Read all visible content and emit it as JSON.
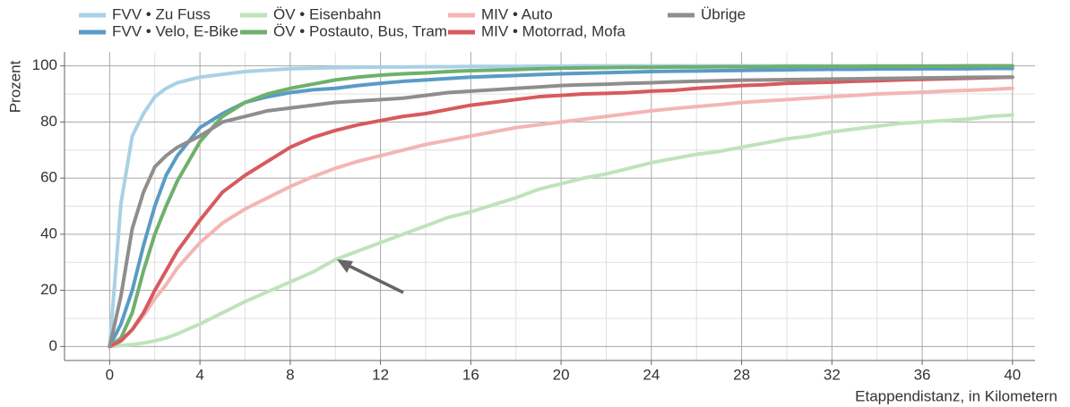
{
  "chart_data": {
    "type": "line",
    "x_label": "Etappendistanz, in Kilometern",
    "y_label": "Prozent",
    "x": [
      0,
      0.5,
      1,
      1.5,
      2,
      2.5,
      3,
      4,
      5,
      6,
      7,
      8,
      9,
      10,
      11,
      12,
      13,
      14,
      15,
      16,
      17,
      18,
      19,
      20,
      21,
      22,
      23,
      24,
      25,
      26,
      27,
      28,
      29,
      30,
      31,
      32,
      33,
      34,
      35,
      36,
      37,
      38,
      39,
      40
    ],
    "series": [
      {
        "name": "FVV • Zu Fuss",
        "color": "#a9d1e6",
        "values": [
          0,
          51,
          75,
          83,
          89,
          92,
          94,
          96,
          97,
          98,
          98.5,
          99,
          99.2,
          99.4,
          99.5,
          99.6,
          99.6,
          99.7,
          99.7,
          99.8,
          99.8,
          99.8,
          99.9,
          99.9,
          100,
          100,
          100,
          100,
          100,
          100,
          100,
          100,
          100,
          100,
          100,
          100,
          100,
          100,
          100,
          100,
          100,
          100,
          100,
          100
        ]
      },
      {
        "name": "FVV • Velo, E-Bike",
        "color": "#5a9bc6",
        "values": [
          0,
          8,
          20,
          36,
          50,
          61,
          68,
          78,
          83,
          87,
          89,
          90.5,
          91.5,
          92,
          93,
          93.8,
          94.5,
          95,
          95.5,
          96,
          96.3,
          96.6,
          96.9,
          97.2,
          97.4,
          97.6,
          97.8,
          98,
          98.1,
          98.2,
          98.3,
          98.4,
          98.5,
          98.6,
          98.7,
          98.8,
          98.8,
          98.9,
          98.9,
          99,
          99,
          99,
          99.1,
          99.1
        ]
      },
      {
        "name": "ÖV • Eisenbahn",
        "color": "#bfe3bb",
        "values": [
          0,
          0.3,
          0.7,
          1.2,
          2,
          3,
          4.5,
          8,
          12,
          16,
          19.5,
          23,
          26.5,
          31,
          34,
          37,
          40,
          43,
          46,
          48,
          50.5,
          53,
          56,
          58,
          60,
          61.5,
          63.5,
          65.5,
          67,
          68.5,
          69.5,
          71,
          72.5,
          74,
          75,
          76.5,
          77.5,
          78.5,
          79.5,
          80,
          80.5,
          81,
          82,
          82.5
        ]
      },
      {
        "name": "ÖV • Postauto, Bus, Tram",
        "color": "#6fb06c",
        "values": [
          0,
          3,
          12,
          27,
          40,
          50,
          59,
          73,
          82,
          87,
          90,
          92,
          93.5,
          95,
          96,
          96.7,
          97.2,
          97.5,
          98,
          98.3,
          98.5,
          98.7,
          99,
          99.2,
          99.3,
          99.4,
          99.5,
          99.5,
          99.6,
          99.6,
          99.7,
          99.7,
          99.7,
          99.8,
          99.8,
          99.8,
          99.8,
          99.9,
          99.9,
          99.9,
          99.9,
          100,
          100,
          100
        ]
      },
      {
        "name": "MIV • Auto",
        "color": "#f4b5b5",
        "values": [
          0,
          2,
          6,
          11,
          17,
          22,
          28,
          37,
          44,
          49,
          53,
          57,
          60.5,
          63.5,
          66,
          68,
          70,
          72,
          73.5,
          75,
          76.5,
          78,
          79,
          80,
          81,
          82,
          83,
          84,
          84.8,
          85.5,
          86.2,
          87,
          87.5,
          88,
          88.5,
          89,
          89.5,
          90,
          90.3,
          90.6,
          91,
          91.3,
          91.6,
          92
        ]
      },
      {
        "name": "MIV • Motorrad, Mofa",
        "color": "#d75a5e",
        "values": [
          0,
          2,
          6,
          12,
          20,
          27,
          34,
          45,
          55,
          61,
          66,
          71,
          74.5,
          77,
          79,
          80.5,
          82,
          83,
          84.5,
          86,
          87,
          88,
          89,
          89.5,
          90,
          90.2,
          90.5,
          91,
          91.3,
          92,
          92.5,
          93,
          93.3,
          93.8,
          94,
          94.2,
          94.5,
          94.7,
          95,
          95.2,
          95.4,
          95.6,
          95.8,
          96
        ]
      },
      {
        "name": "Übrige",
        "color": "#8e8e8e",
        "values": [
          0,
          18,
          42,
          55,
          64,
          68,
          71,
          75,
          80,
          82,
          84,
          85,
          86,
          87,
          87.5,
          88,
          88.5,
          89.5,
          90.5,
          91,
          91.5,
          92,
          92.5,
          93,
          93.3,
          93.5,
          93.8,
          94,
          94.3,
          94.5,
          94.7,
          94.9,
          95,
          95.1,
          95.2,
          95.3,
          95.4,
          95.5,
          95.6,
          95.7,
          95.8,
          95.9,
          96,
          96
        ]
      }
    ],
    "xlim": [
      -2,
      41
    ],
    "ylim": [
      -5,
      105
    ],
    "xticks": [
      0,
      4,
      8,
      12,
      16,
      20,
      24,
      28,
      32,
      36,
      40
    ],
    "yticks": [
      0,
      20,
      40,
      60,
      80,
      100
    ],
    "grid": true,
    "minor_grid": true,
    "legend": "top"
  }
}
